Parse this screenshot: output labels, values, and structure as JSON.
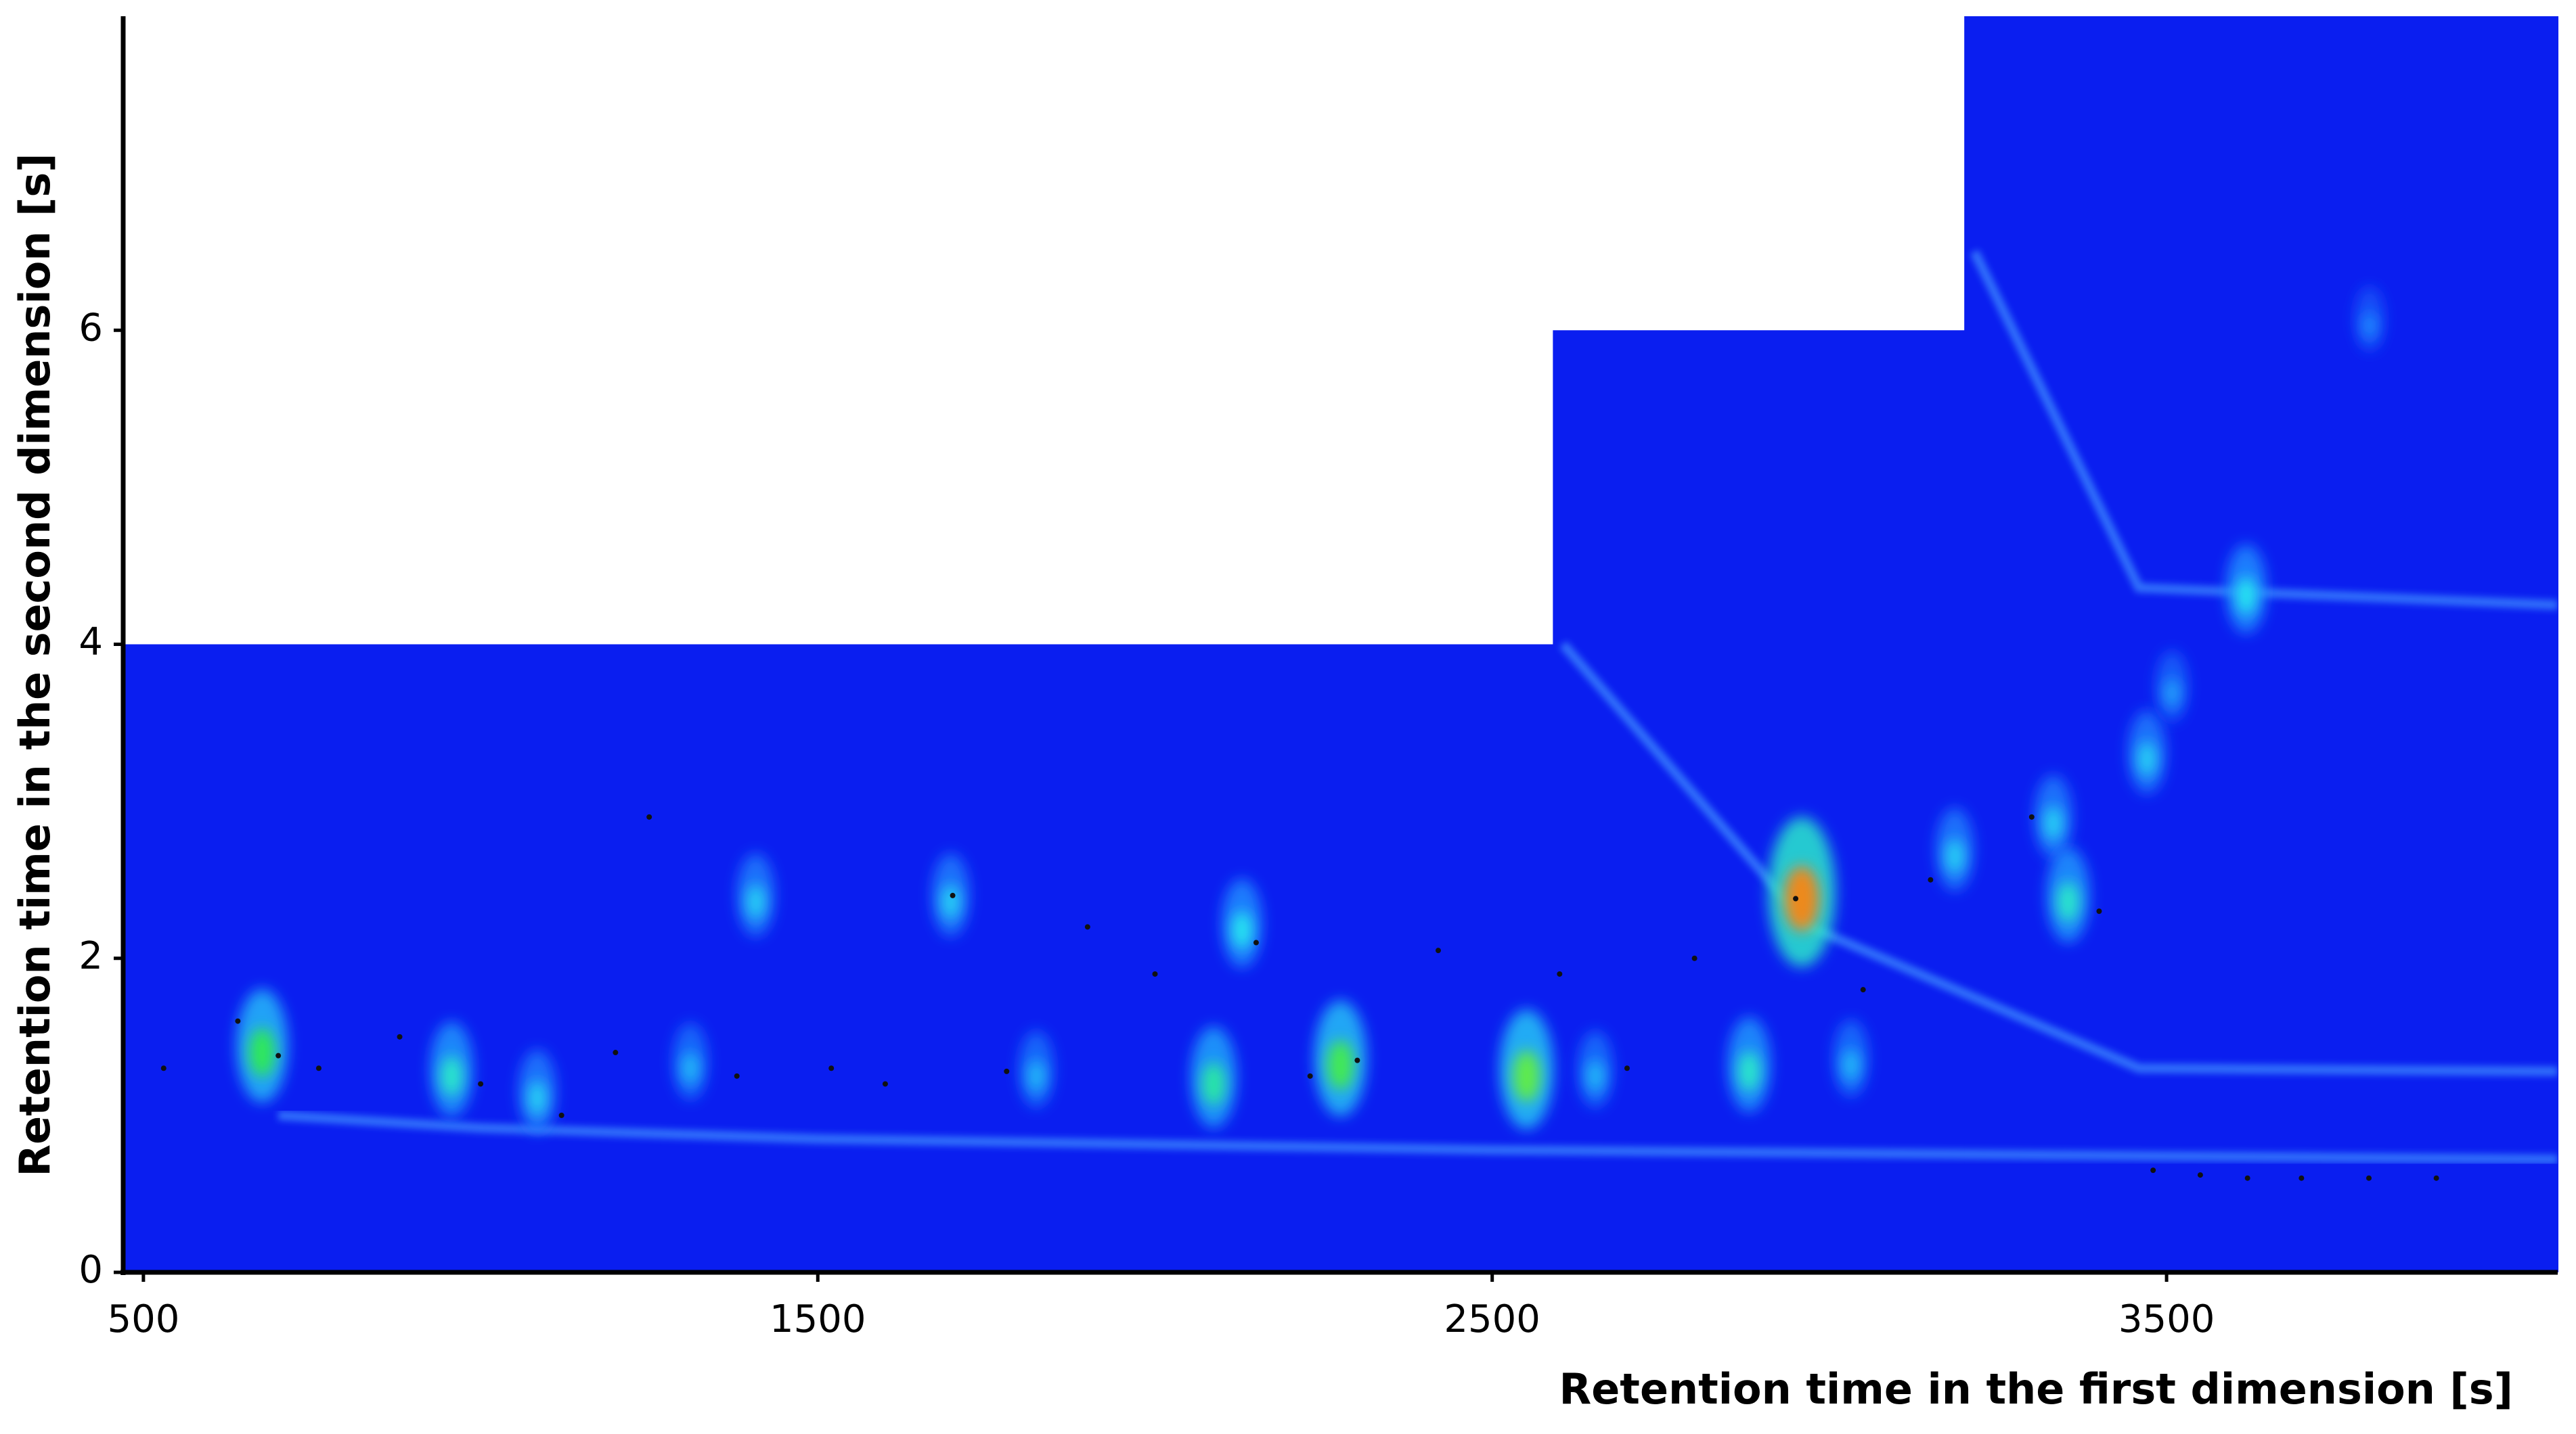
{
  "chart_data": {
    "type": "heatmap2d",
    "x_label": "Retention time in the first dimension [s]",
    "y_label": "Retention time in the second dimension  [s]",
    "xlim": [
      470,
      4080
    ],
    "ylim": [
      0,
      8
    ],
    "xticks": [
      500,
      1500,
      2500,
      3500
    ],
    "yticks": [
      0,
      2,
      4,
      6
    ],
    "background_color": "#0a1ef0",
    "colormap": [
      "#0a1ef0",
      "#1e8cff",
      "#27e6f0",
      "#2ee85a",
      "#f2f21c",
      "#e82018"
    ],
    "modulation_windows": {
      "bins": [
        470,
        2590,
        3200,
        4080
      ],
      "values": [
        4,
        6,
        8
      ]
    },
    "bands": [
      {
        "color": "#3c8cff",
        "x": [
          700,
          1000,
          1500,
          2500,
          3500,
          4080
        ],
        "y": [
          1.0,
          0.92,
          0.85,
          0.78,
          0.74,
          0.72
        ]
      },
      {
        "color": "#3c8cff",
        "x": [
          2605,
          2971,
          3459,
          4080
        ],
        "y": [
          4.0,
          2.2,
          1.3,
          1.28
        ]
      },
      {
        "color": "#3c8cff",
        "x": [
          3215,
          3459,
          4080
        ],
        "y": [
          6.5,
          4.36,
          4.25
        ]
      }
    ],
    "peaks": {
      "x": [
        676,
        957,
        1084,
        1311,
        1408,
        1697,
        1824,
        2087,
        2129,
        2275,
        2551,
        2653,
        2881,
        2959,
        3032,
        3186,
        3332,
        3354,
        3471,
        3508,
        3618,
        3801
      ],
      "y": [
        1.4,
        1.25,
        1.11,
        1.3,
        2.36,
        2.36,
        1.25,
        1.2,
        2.18,
        1.32,
        1.25,
        1.25,
        1.28,
        2.38,
        1.32,
        2.65,
        2.86,
        2.36,
        3.27,
        3.69,
        4.31,
        6.03
      ],
      "intensity": [
        0.6,
        0.45,
        0.35,
        0.3,
        0.35,
        0.35,
        0.3,
        0.5,
        0.4,
        0.62,
        0.65,
        0.3,
        0.45,
        0.9,
        0.3,
        0.35,
        0.35,
        0.45,
        0.35,
        0.25,
        0.4,
        0.2
      ]
    },
    "detected_peaks": {
      "x": [
        530,
        640,
        700,
        760,
        880,
        1000,
        1120,
        1200,
        1250,
        1380,
        1520,
        1600,
        1700,
        1780,
        1900,
        2000,
        2150,
        2230,
        2300,
        2420,
        2600,
        2700,
        2800,
        2950,
        3050,
        3150,
        3300,
        3400,
        3480,
        3550,
        3620,
        3700,
        3800,
        3900
      ],
      "y": [
        1.3,
        1.6,
        1.38,
        1.3,
        1.5,
        1.2,
        1.0,
        1.4,
        2.9,
        1.25,
        1.3,
        1.2,
        2.4,
        1.28,
        2.2,
        1.9,
        2.1,
        1.25,
        1.35,
        2.05,
        1.9,
        1.3,
        2.0,
        2.38,
        1.8,
        2.5,
        2.9,
        2.3,
        0.65,
        0.62,
        0.6,
        0.6,
        0.6,
        0.6
      ]
    }
  }
}
